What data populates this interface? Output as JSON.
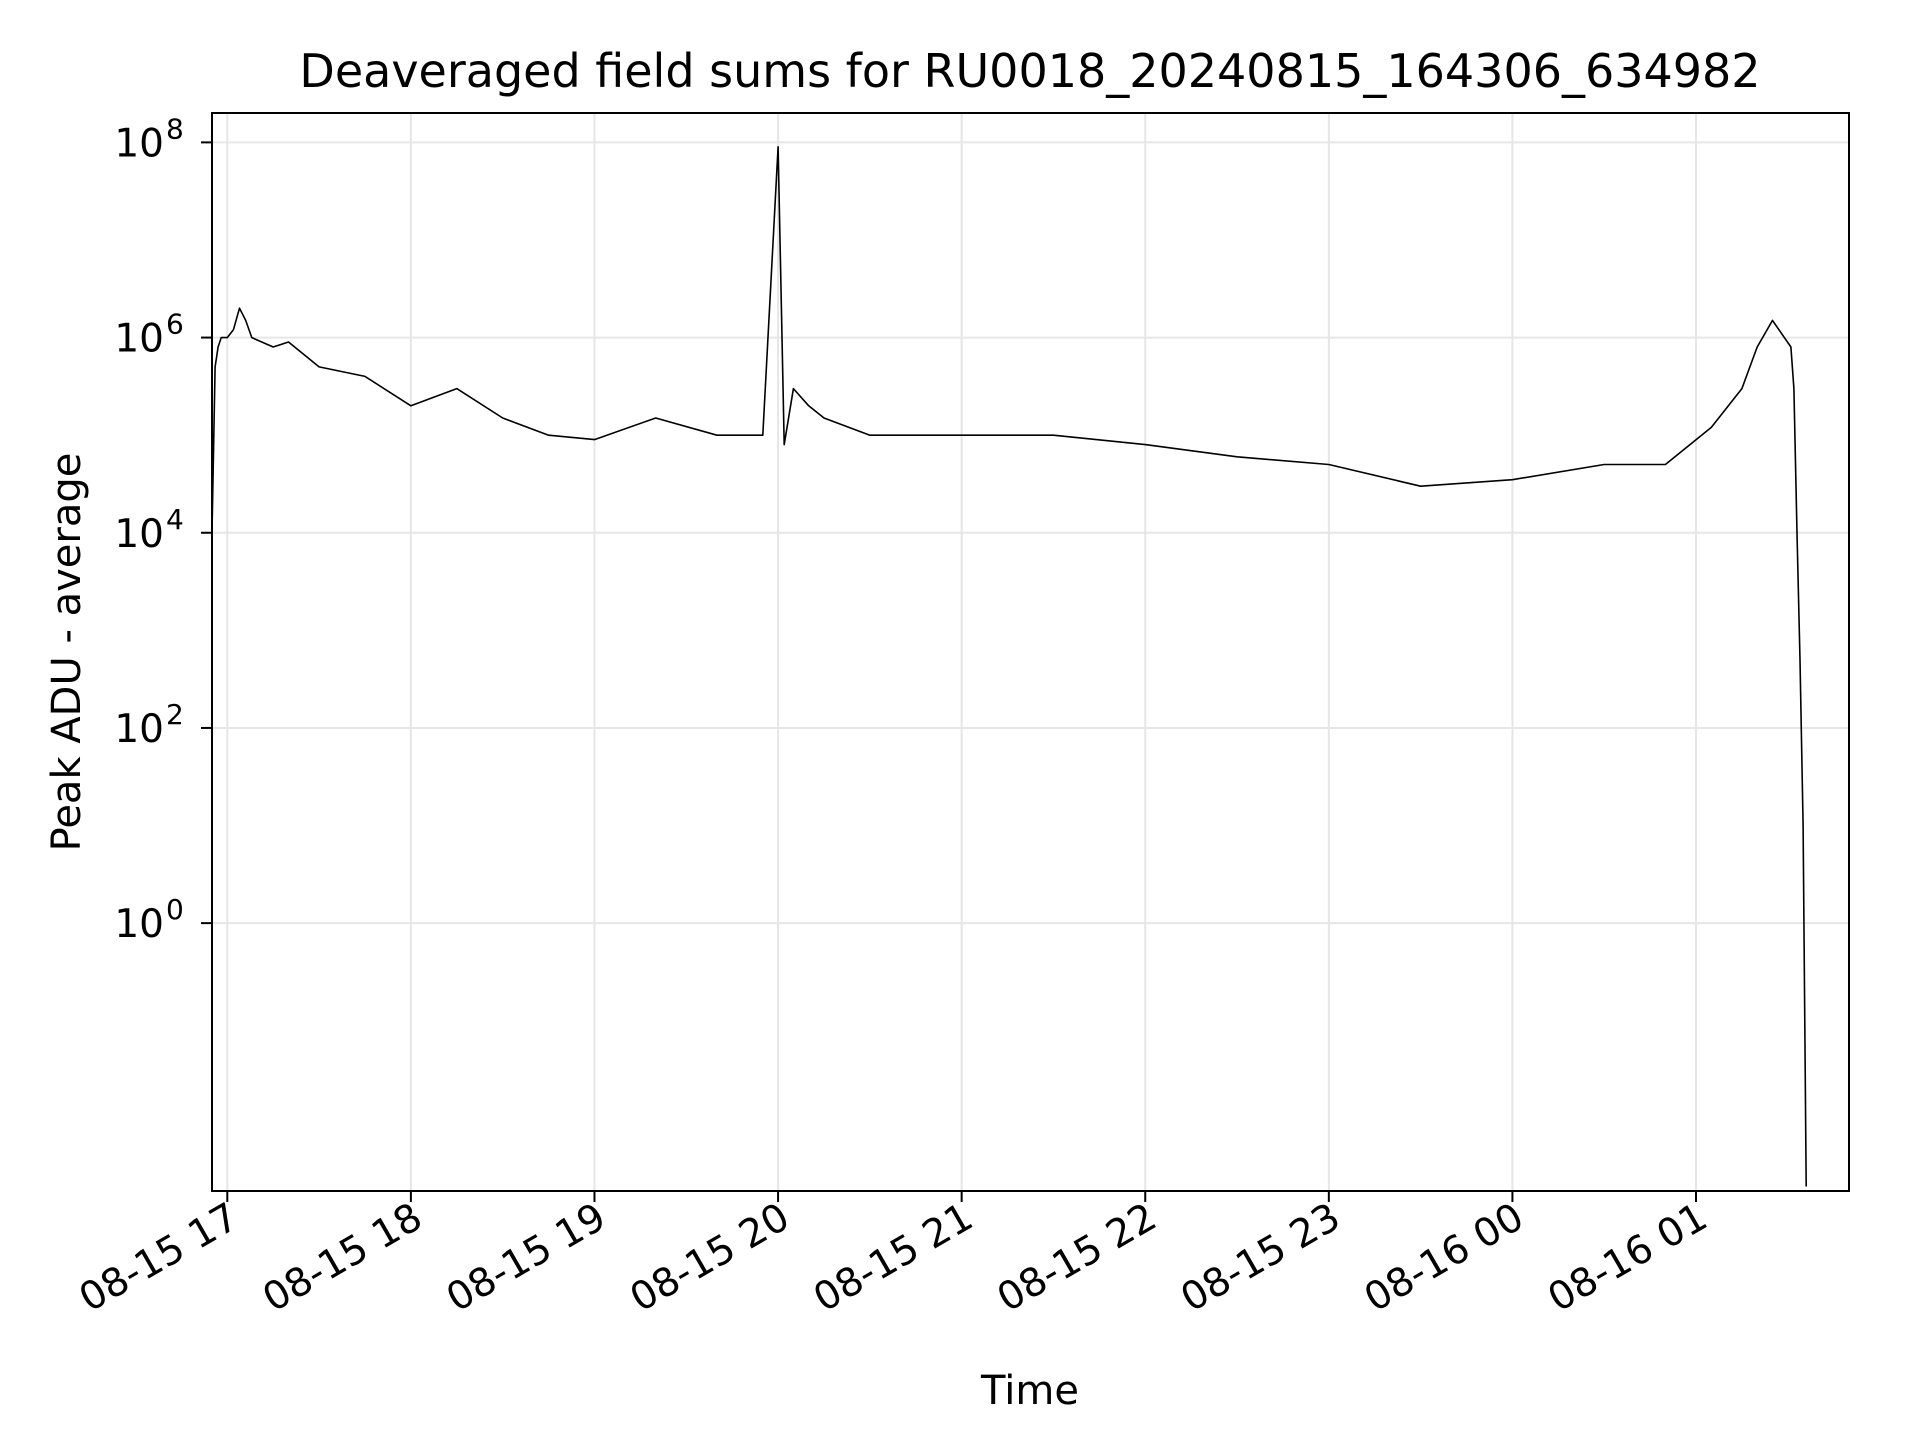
{
  "chart_data": {
    "type": "line",
    "title": "Deaveraged field sums for RU0018_20240815_164306_634982",
    "xlabel": "Time",
    "ylabel": "Peak ADU - average",
    "x_scale": "time",
    "y_scale": "log",
    "xlim": [
      "2024-08-15 16:55",
      "2024-08-16 01:50"
    ],
    "ylim": [
      0.0018,
      200000000
    ],
    "x_ticks": [
      {
        "value": "2024-08-15 17:00",
        "label": "08-15 17"
      },
      {
        "value": "2024-08-15 18:00",
        "label": "08-15 18"
      },
      {
        "value": "2024-08-15 19:00",
        "label": "08-15 19"
      },
      {
        "value": "2024-08-15 20:00",
        "label": "08-15 20"
      },
      {
        "value": "2024-08-15 21:00",
        "label": "08-15 21"
      },
      {
        "value": "2024-08-15 22:00",
        "label": "08-15 22"
      },
      {
        "value": "2024-08-15 23:00",
        "label": "08-15 23"
      },
      {
        "value": "2024-08-16 00:00",
        "label": "08-16 00"
      },
      {
        "value": "2024-08-16 01:00",
        "label": "08-16 01"
      }
    ],
    "y_ticks": [
      {
        "value": 1,
        "base": "10",
        "exp": "0"
      },
      {
        "value": 100,
        "base": "10",
        "exp": "2"
      },
      {
        "value": 10000,
        "base": "10",
        "exp": "4"
      },
      {
        "value": 1000000,
        "base": "10",
        "exp": "6"
      },
      {
        "value": 100000000,
        "base": "10",
        "exp": "8"
      }
    ],
    "grid": true,
    "legend": "none",
    "series": [
      {
        "color": "#000000",
        "x": [
          "2024-08-15 16:55",
          "2024-08-15 16:55",
          "2024-08-15 16:56",
          "2024-08-15 16:57",
          "2024-08-15 16:58",
          "2024-08-15 17:00",
          "2024-08-15 17:02",
          "2024-08-15 17:04",
          "2024-08-15 17:06",
          "2024-08-15 17:08",
          "2024-08-15 17:15",
          "2024-08-15 17:20",
          "2024-08-15 17:30",
          "2024-08-15 17:45",
          "2024-08-15 18:00",
          "2024-08-15 18:15",
          "2024-08-15 18:30",
          "2024-08-15 18:45",
          "2024-08-15 19:00",
          "2024-08-15 19:20",
          "2024-08-15 19:40",
          "2024-08-15 19:55",
          "2024-08-15 20:00",
          "2024-08-15 20:02",
          "2024-08-15 20:05",
          "2024-08-15 20:10",
          "2024-08-15 20:15",
          "2024-08-15 20:30",
          "2024-08-15 21:00",
          "2024-08-15 21:30",
          "2024-08-15 22:00",
          "2024-08-15 22:30",
          "2024-08-15 23:00",
          "2024-08-15 23:30",
          "2024-08-16 00:00",
          "2024-08-16 00:30",
          "2024-08-16 00:50",
          "2024-08-16 01:05",
          "2024-08-16 01:15",
          "2024-08-16 01:20",
          "2024-08-16 01:25",
          "2024-08-16 01:31",
          "2024-08-16 01:32",
          "2024-08-16 01:33",
          "2024-08-16 01:34",
          "2024-08-16 01:35",
          "2024-08-16 01:36"
        ],
        "y": [
          0.002,
          10000,
          500000,
          800000,
          1000000,
          1000000,
          1200000,
          2000000,
          1500000,
          1000000,
          800000,
          900000,
          500000,
          400000,
          200000,
          300000,
          150000,
          100000,
          90000,
          150000,
          100000,
          100000,
          90000000,
          80000,
          300000,
          200000,
          150000,
          100000,
          100000,
          100000,
          80000,
          60000,
          50000,
          30000,
          35000,
          50000,
          50000,
          120000,
          300000,
          800000,
          1500000,
          800000,
          300000,
          10000,
          500,
          10,
          0.002
        ]
      }
    ]
  }
}
